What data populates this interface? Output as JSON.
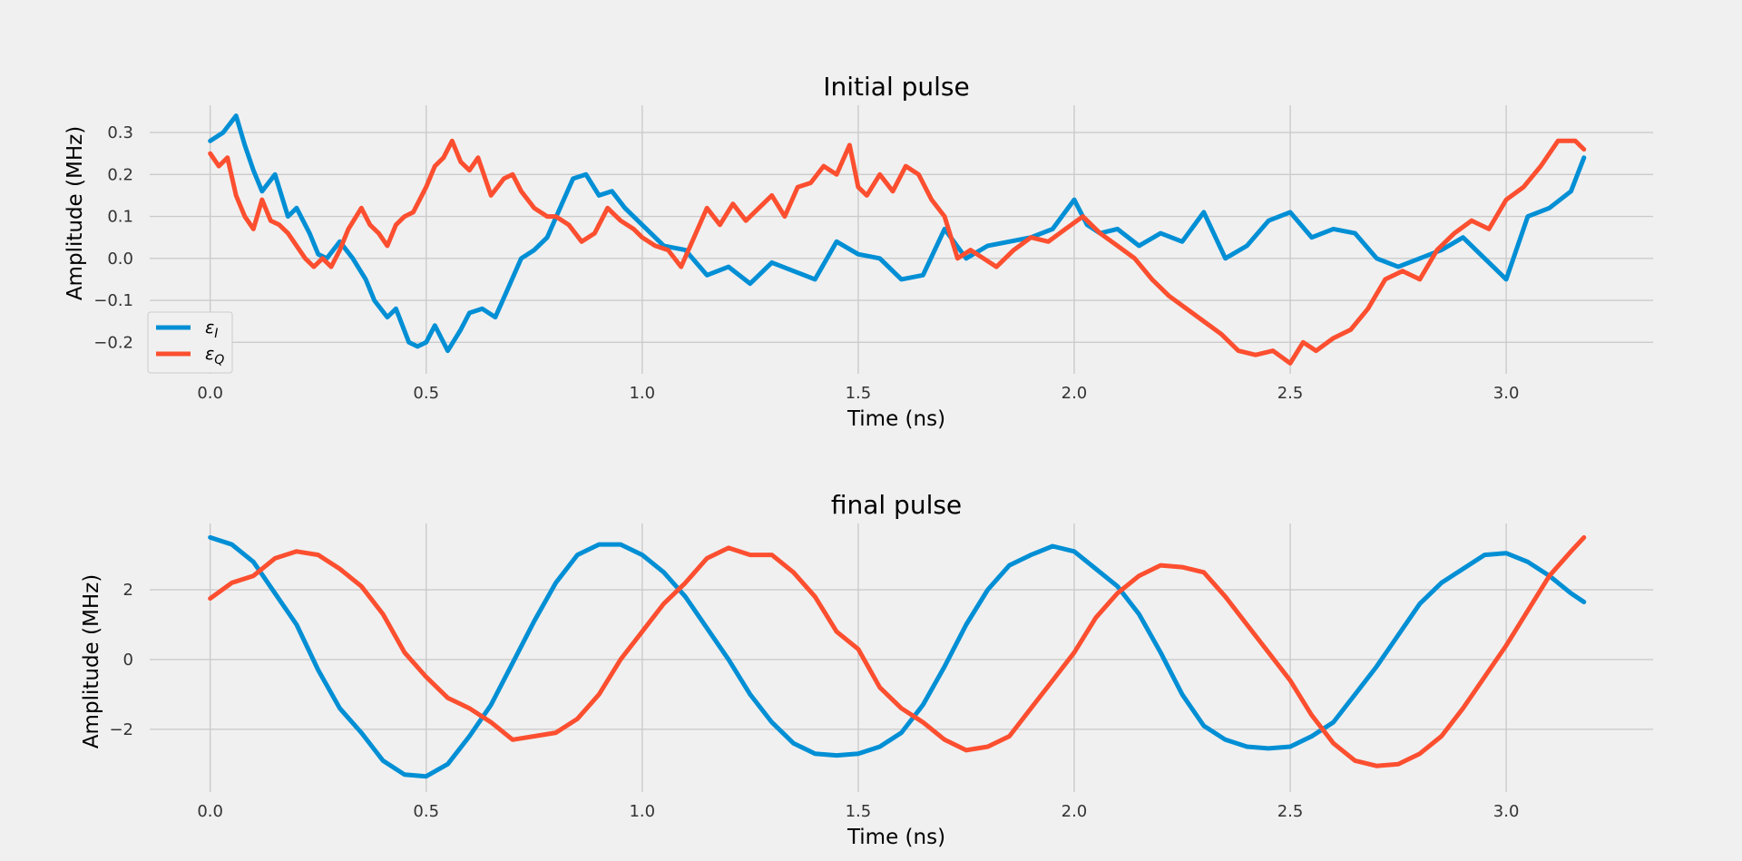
{
  "colors": {
    "background": "#f0f0f0",
    "grid": "#cbcbcb",
    "series_i": "#008fd5",
    "series_q": "#fc4f30"
  },
  "chart_data": [
    {
      "type": "line",
      "title": "Initial pulse",
      "xlabel": "Time (ns)",
      "ylabel": "Amplitude (MHz)",
      "xlim": [
        -0.14,
        3.34
      ],
      "ylim": [
        -0.275,
        0.365
      ],
      "xticks": [
        0.0,
        0.5,
        1.0,
        1.5,
        2.0,
        2.5,
        3.0
      ],
      "xtick_labels": [
        "0.0",
        "0.5",
        "1.0",
        "1.5",
        "2.0",
        "2.5",
        "3.0"
      ],
      "yticks": [
        -0.2,
        -0.1,
        0.0,
        0.1,
        0.2,
        0.3
      ],
      "ytick_labels": [
        "−0.2",
        "−0.1",
        "0.0",
        "0.1",
        "0.2",
        "0.3"
      ],
      "grid": true,
      "legend": {
        "placement": "lower-left",
        "entries": [
          "ε_I",
          "ε_Q"
        ]
      },
      "series": [
        {
          "name": "ε_I",
          "color": "#008fd5",
          "x": [
            0.0,
            0.03,
            0.06,
            0.08,
            0.1,
            0.12,
            0.15,
            0.18,
            0.2,
            0.23,
            0.25,
            0.27,
            0.3,
            0.33,
            0.36,
            0.38,
            0.41,
            0.43,
            0.46,
            0.48,
            0.5,
            0.52,
            0.55,
            0.58,
            0.6,
            0.63,
            0.66,
            0.69,
            0.72,
            0.75,
            0.78,
            0.81,
            0.84,
            0.87,
            0.9,
            0.93,
            0.96,
            1.0,
            1.05,
            1.1,
            1.15,
            1.2,
            1.25,
            1.3,
            1.35,
            1.4,
            1.45,
            1.5,
            1.55,
            1.6,
            1.65,
            1.7,
            1.75,
            1.8,
            1.85,
            1.9,
            1.95,
            2.0,
            2.03,
            2.06,
            2.1,
            2.15,
            2.2,
            2.25,
            2.3,
            2.35,
            2.4,
            2.45,
            2.5,
            2.55,
            2.6,
            2.65,
            2.7,
            2.75,
            2.8,
            2.85,
            2.9,
            2.95,
            3.0,
            3.05,
            3.1,
            3.15,
            3.18
          ],
          "values": [
            0.28,
            0.3,
            0.34,
            0.27,
            0.21,
            0.16,
            0.2,
            0.1,
            0.12,
            0.06,
            0.01,
            0.0,
            0.04,
            0.0,
            -0.05,
            -0.1,
            -0.14,
            -0.12,
            -0.2,
            -0.21,
            -0.2,
            -0.16,
            -0.22,
            -0.17,
            -0.13,
            -0.12,
            -0.14,
            -0.07,
            0.0,
            0.02,
            0.05,
            0.12,
            0.19,
            0.2,
            0.15,
            0.16,
            0.12,
            0.08,
            0.03,
            0.02,
            -0.04,
            -0.02,
            -0.06,
            -0.01,
            -0.03,
            -0.05,
            0.04,
            0.01,
            0.0,
            -0.05,
            -0.04,
            0.07,
            0.0,
            0.03,
            0.04,
            0.05,
            0.07,
            0.14,
            0.08,
            0.06,
            0.07,
            0.03,
            0.06,
            0.04,
            0.11,
            0.0,
            0.03,
            0.09,
            0.11,
            0.05,
            0.07,
            0.06,
            0.0,
            -0.02,
            0.0,
            0.02,
            0.05,
            0.0,
            -0.05,
            0.1,
            0.12,
            0.16,
            0.24
          ]
        },
        {
          "name": "ε_Q",
          "color": "#fc4f30",
          "x": [
            0.0,
            0.02,
            0.04,
            0.06,
            0.08,
            0.1,
            0.12,
            0.14,
            0.16,
            0.18,
            0.2,
            0.22,
            0.24,
            0.26,
            0.28,
            0.3,
            0.32,
            0.35,
            0.37,
            0.39,
            0.41,
            0.43,
            0.45,
            0.47,
            0.5,
            0.52,
            0.54,
            0.56,
            0.58,
            0.6,
            0.62,
            0.65,
            0.68,
            0.7,
            0.72,
            0.75,
            0.78,
            0.8,
            0.83,
            0.86,
            0.89,
            0.92,
            0.95,
            0.98,
            1.0,
            1.03,
            1.06,
            1.09,
            1.12,
            1.15,
            1.18,
            1.21,
            1.24,
            1.27,
            1.3,
            1.33,
            1.36,
            1.39,
            1.42,
            1.45,
            1.48,
            1.5,
            1.52,
            1.55,
            1.58,
            1.61,
            1.64,
            1.67,
            1.7,
            1.73,
            1.76,
            1.79,
            1.82,
            1.86,
            1.9,
            1.94,
            1.98,
            2.02,
            2.06,
            2.1,
            2.14,
            2.18,
            2.22,
            2.26,
            2.3,
            2.34,
            2.38,
            2.42,
            2.46,
            2.5,
            2.53,
            2.56,
            2.6,
            2.64,
            2.68,
            2.72,
            2.76,
            2.8,
            2.84,
            2.88,
            2.92,
            2.96,
            3.0,
            3.04,
            3.08,
            3.12,
            3.16,
            3.18
          ],
          "values": [
            0.25,
            0.22,
            0.24,
            0.15,
            0.1,
            0.07,
            0.14,
            0.09,
            0.08,
            0.06,
            0.03,
            0.0,
            -0.02,
            0.0,
            -0.02,
            0.02,
            0.07,
            0.12,
            0.08,
            0.06,
            0.03,
            0.08,
            0.1,
            0.11,
            0.17,
            0.22,
            0.24,
            0.28,
            0.23,
            0.21,
            0.24,
            0.15,
            0.19,
            0.2,
            0.16,
            0.12,
            0.1,
            0.1,
            0.08,
            0.04,
            0.06,
            0.12,
            0.09,
            0.07,
            0.05,
            0.03,
            0.02,
            -0.02,
            0.05,
            0.12,
            0.08,
            0.13,
            0.09,
            0.12,
            0.15,
            0.1,
            0.17,
            0.18,
            0.22,
            0.2,
            0.27,
            0.17,
            0.15,
            0.2,
            0.16,
            0.22,
            0.2,
            0.14,
            0.1,
            0.0,
            0.02,
            0.0,
            -0.02,
            0.02,
            0.05,
            0.04,
            0.07,
            0.1,
            0.06,
            0.03,
            0.0,
            -0.05,
            -0.09,
            -0.12,
            -0.15,
            -0.18,
            -0.22,
            -0.23,
            -0.22,
            -0.25,
            -0.2,
            -0.22,
            -0.19,
            -0.17,
            -0.12,
            -0.05,
            -0.03,
            -0.05,
            0.02,
            0.06,
            0.09,
            0.07,
            0.14,
            0.17,
            0.22,
            0.28,
            0.28,
            0.26
          ]
        }
      ]
    },
    {
      "type": "line",
      "title": "final pulse",
      "xlabel": "Time (ns)",
      "ylabel": "Amplitude (MHz)",
      "xlim": [
        -0.14,
        3.34
      ],
      "ylim": [
        -3.8,
        3.9
      ],
      "xticks": [
        0.0,
        0.5,
        1.0,
        1.5,
        2.0,
        2.5,
        3.0
      ],
      "xtick_labels": [
        "0.0",
        "0.5",
        "1.0",
        "1.5",
        "2.0",
        "2.5",
        "3.0"
      ],
      "yticks": [
        -2,
        0,
        2
      ],
      "ytick_labels": [
        "−2",
        "0",
        "2"
      ],
      "grid": true,
      "series": [
        {
          "name": "ε_I",
          "color": "#008fd5",
          "x": [
            0.0,
            0.05,
            0.1,
            0.15,
            0.2,
            0.25,
            0.3,
            0.35,
            0.4,
            0.45,
            0.5,
            0.55,
            0.6,
            0.65,
            0.7,
            0.75,
            0.8,
            0.85,
            0.9,
            0.95,
            1.0,
            1.05,
            1.1,
            1.15,
            1.2,
            1.25,
            1.3,
            1.35,
            1.4,
            1.45,
            1.5,
            1.55,
            1.6,
            1.65,
            1.7,
            1.75,
            1.8,
            1.85,
            1.9,
            1.95,
            2.0,
            2.05,
            2.1,
            2.15,
            2.2,
            2.25,
            2.3,
            2.35,
            2.4,
            2.45,
            2.5,
            2.55,
            2.6,
            2.65,
            2.7,
            2.75,
            2.8,
            2.85,
            2.9,
            2.95,
            3.0,
            3.05,
            3.1,
            3.15,
            3.18
          ],
          "values": [
            3.5,
            3.3,
            2.8,
            1.9,
            1.0,
            -0.3,
            -1.4,
            -2.1,
            -2.9,
            -3.3,
            -3.35,
            -3.0,
            -2.2,
            -1.3,
            -0.1,
            1.1,
            2.2,
            3.0,
            3.3,
            3.3,
            3.0,
            2.5,
            1.8,
            0.9,
            0.0,
            -1.0,
            -1.8,
            -2.4,
            -2.7,
            -2.75,
            -2.7,
            -2.5,
            -2.1,
            -1.3,
            -0.2,
            1.0,
            2.0,
            2.7,
            3.0,
            3.25,
            3.1,
            2.6,
            2.1,
            1.3,
            0.2,
            -1.0,
            -1.9,
            -2.3,
            -2.5,
            -2.55,
            -2.5,
            -2.2,
            -1.8,
            -1.0,
            -0.2,
            0.7,
            1.6,
            2.2,
            2.6,
            3.0,
            3.05,
            2.8,
            2.4,
            1.9,
            1.65
          ]
        },
        {
          "name": "ε_Q",
          "color": "#fc4f30",
          "x": [
            0.0,
            0.05,
            0.1,
            0.15,
            0.2,
            0.25,
            0.3,
            0.35,
            0.4,
            0.45,
            0.5,
            0.55,
            0.6,
            0.65,
            0.7,
            0.75,
            0.8,
            0.85,
            0.9,
            0.95,
            1.0,
            1.05,
            1.1,
            1.15,
            1.2,
            1.25,
            1.3,
            1.35,
            1.4,
            1.45,
            1.5,
            1.55,
            1.6,
            1.65,
            1.7,
            1.75,
            1.8,
            1.85,
            1.9,
            1.95,
            2.0,
            2.05,
            2.1,
            2.15,
            2.2,
            2.25,
            2.3,
            2.35,
            2.4,
            2.45,
            2.5,
            2.55,
            2.6,
            2.65,
            2.7,
            2.75,
            2.8,
            2.85,
            2.9,
            2.95,
            3.0,
            3.05,
            3.1,
            3.15,
            3.18
          ],
          "values": [
            1.75,
            2.2,
            2.4,
            2.9,
            3.1,
            3.0,
            2.6,
            2.1,
            1.3,
            0.2,
            -0.5,
            -1.1,
            -1.4,
            -1.8,
            -2.3,
            -2.2,
            -2.1,
            -1.7,
            -1.0,
            0.0,
            0.8,
            1.6,
            2.2,
            2.9,
            3.2,
            3.0,
            3.0,
            2.5,
            1.8,
            0.8,
            0.3,
            -0.8,
            -1.4,
            -1.8,
            -2.3,
            -2.6,
            -2.5,
            -2.2,
            -1.4,
            -0.6,
            0.2,
            1.2,
            1.9,
            2.4,
            2.7,
            2.65,
            2.5,
            1.8,
            1.0,
            0.2,
            -0.6,
            -1.6,
            -2.4,
            -2.9,
            -3.05,
            -3.0,
            -2.7,
            -2.2,
            -1.4,
            -0.5,
            0.4,
            1.4,
            2.4,
            3.1,
            3.5
          ]
        }
      ]
    }
  ]
}
